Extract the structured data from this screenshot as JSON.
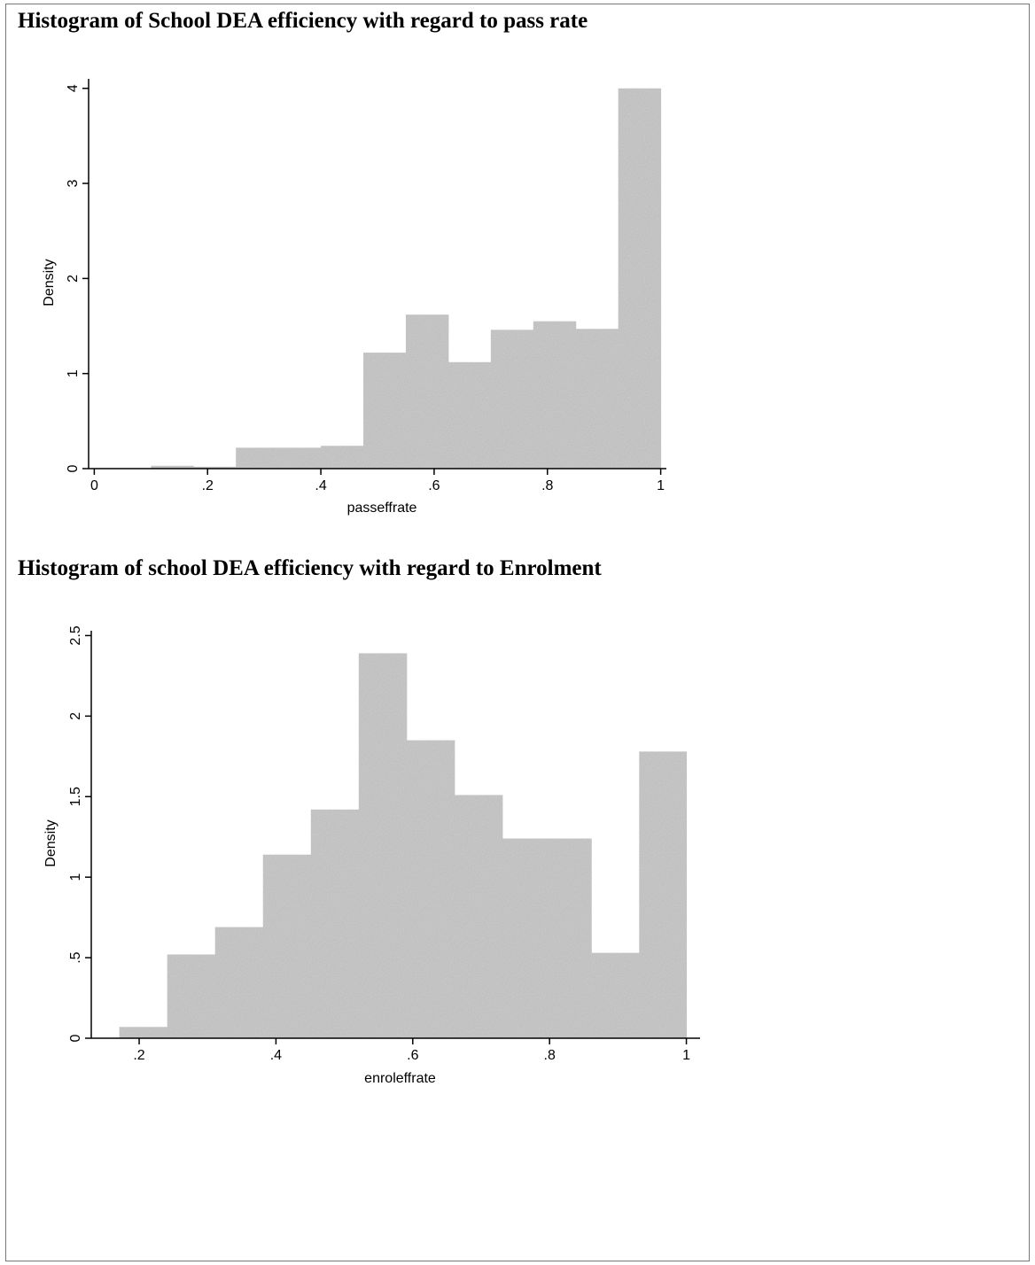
{
  "page": {
    "background": "#ffffff"
  },
  "bar_color": "#b8b8b8",
  "chart_data": [
    {
      "type": "bar",
      "title": "Histogram of School DEA efficiency with regard to pass rate",
      "xlabel": "passeffrate",
      "ylabel": "Density",
      "xlim": [
        -0.01,
        1.01
      ],
      "ylim": [
        0,
        4.1
      ],
      "xticks": [
        {
          "value": 0,
          "label": "0"
        },
        {
          "value": 0.2,
          "label": ".2"
        },
        {
          "value": 0.4,
          "label": ".4"
        },
        {
          "value": 0.6,
          "label": ".6"
        },
        {
          "value": 0.8,
          "label": ".8"
        },
        {
          "value": 1,
          "label": "1"
        }
      ],
      "yticks": [
        {
          "value": 0,
          "label": "0"
        },
        {
          "value": 1,
          "label": "1"
        },
        {
          "value": 2,
          "label": "2"
        },
        {
          "value": 3,
          "label": "3"
        },
        {
          "value": 4,
          "label": "4"
        }
      ],
      "bin_edges": [
        0.1,
        0.175,
        0.25,
        0.325,
        0.4,
        0.475,
        0.55,
        0.625,
        0.7,
        0.775,
        0.85,
        0.925,
        1.0
      ],
      "values": [
        0.03,
        0.02,
        0.22,
        0.22,
        0.24,
        1.22,
        1.62,
        1.12,
        1.46,
        1.55,
        1.47,
        4.0
      ],
      "grid": false
    },
    {
      "type": "bar",
      "title": "Histogram of school DEA efficiency with regard to Enrolment",
      "xlabel": "enroleffrate",
      "ylabel": "Density",
      "xlim": [
        0.13,
        1.02
      ],
      "ylim": [
        0,
        2.53
      ],
      "xticks": [
        {
          "value": 0.2,
          "label": ".2"
        },
        {
          "value": 0.4,
          "label": ".4"
        },
        {
          "value": 0.6,
          "label": ".6"
        },
        {
          "value": 0.8,
          "label": ".8"
        },
        {
          "value": 1,
          "label": "1"
        }
      ],
      "yticks": [
        {
          "value": 0,
          "label": "0"
        },
        {
          "value": 0.5,
          "label": ".5"
        },
        {
          "value": 1,
          "label": "1"
        },
        {
          "value": 1.5,
          "label": "1.5"
        },
        {
          "value": 2,
          "label": "2"
        },
        {
          "value": 2.5,
          "label": "2.5"
        }
      ],
      "bin_edges": [
        0.171,
        0.241,
        0.311,
        0.381,
        0.451,
        0.521,
        0.591,
        0.661,
        0.731,
        0.801,
        0.861,
        0.931,
        1.0
      ],
      "values": [
        0.07,
        0.52,
        0.69,
        1.14,
        1.42,
        2.39,
        1.85,
        1.51,
        1.24,
        1.24,
        0.53,
        1.78
      ],
      "grid": false
    }
  ]
}
